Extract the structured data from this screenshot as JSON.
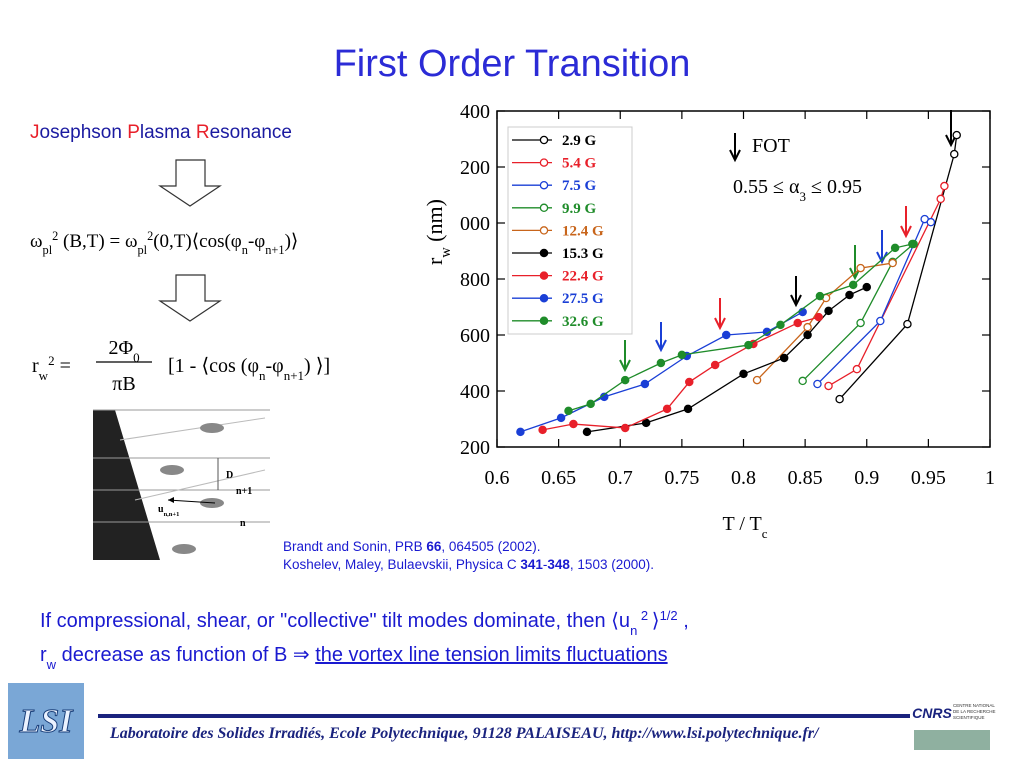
{
  "title": "First Order Transition",
  "heading": [
    {
      "r": "J"
    },
    {
      "t": "osephson "
    },
    {
      "r": "P"
    },
    {
      "t": "lasma "
    },
    {
      "r": "R"
    },
    {
      "t": "esonance"
    }
  ],
  "equation1": [
    {
      "t": "ω"
    },
    {
      "sub": "pl"
    },
    {
      "sup": "2"
    },
    {
      "t": " (B,T) = ω"
    },
    {
      "sub": "pl"
    },
    {
      "sup": "2"
    },
    {
      "t": "(0,T)⟨cos(φ"
    },
    {
      "sub": "n"
    },
    {
      "t": "-φ"
    },
    {
      "sub": "n+1"
    },
    {
      "t": ")⟩"
    }
  ],
  "equation2": {
    "left": [
      {
        "t": "r"
      },
      {
        "sub": "w"
      },
      {
        "sup": "2"
      },
      {
        "t": " ="
      }
    ],
    "numerator": [
      {
        "t": "2Φ"
      },
      {
        "sub": "0"
      }
    ],
    "denominator": [
      {
        "t": "πB"
      }
    ],
    "right": [
      {
        "t": "[1 - ⟨cos (φ"
      },
      {
        "sub": "n"
      },
      {
        "t": "-φ"
      },
      {
        "sub": "n+1"
      },
      {
        "t": ") ⟩]"
      }
    ]
  },
  "diagram": {
    "labels": [
      [
        {
          "t": "D"
        }
      ],
      [
        {
          "t": "n+1"
        }
      ],
      [
        {
          "t": "u"
        },
        {
          "sub": "n,n+1"
        }
      ],
      [
        {
          "t": "n"
        }
      ]
    ]
  },
  "chart_data": {
    "type": "scatter",
    "xlabel": [
      {
        "t": "T / T"
      },
      {
        "sub": "c"
      }
    ],
    "ylabel": [
      {
        "t": "r"
      },
      {
        "sub": "w"
      },
      {
        "t": " (nm)"
      }
    ],
    "annotations": [
      [
        {
          "t": "FOT"
        }
      ],
      [
        {
          "t": "0.55 ≤ α"
        },
        {
          "sub": "3"
        },
        {
          "t": " ≤ 0.95"
        }
      ]
    ],
    "xlim": [
      0.6,
      1
    ],
    "xticks": [
      0.6,
      0.65,
      0.7,
      0.75,
      0.8,
      0.85,
      0.9,
      0.95,
      1
    ],
    "ylim": [
      200,
      1400
    ],
    "yticks": [
      200,
      400,
      600,
      800,
      {
        "value": 1000,
        "label": "000"
      },
      {
        "value": 1200,
        "label": "200"
      },
      {
        "value": 1400,
        "label": "400"
      }
    ],
    "legend": "upper left",
    "series": [
      {
        "name": "2.9 G",
        "color": "#000000",
        "filled": false,
        "x": [
          0.878,
          0.933,
          0.971,
          0.973
        ],
        "values": [
          371,
          639,
          1246,
          1314
        ]
      },
      {
        "name": "5.4 G",
        "color": "#e8202a",
        "filled": false,
        "x": [
          0.869,
          0.892,
          0.96,
          0.963
        ],
        "values": [
          418,
          478,
          1086,
          1132
        ]
      },
      {
        "name": "7.5 G",
        "color": "#1a3fd6",
        "filled": false,
        "x": [
          0.86,
          0.911,
          0.947,
          0.952
        ],
        "values": [
          425,
          650,
          1014,
          1003
        ]
      },
      {
        "name": "9.9 G",
        "color": "#1f8c2a",
        "filled": false,
        "x": [
          0.848,
          0.895,
          0.921,
          0.938
        ],
        "values": [
          436,
          643,
          861,
          925
        ]
      },
      {
        "name": "12.4 G",
        "color": "#c8651b",
        "filled": false,
        "x": [
          0.811,
          0.852,
          0.867,
          0.895,
          0.921
        ],
        "values": [
          439,
          628,
          732,
          839,
          857
        ]
      },
      {
        "name": "15.3 G",
        "color": "#000000",
        "filled": true,
        "x": [
          0.673,
          0.721,
          0.755,
          0.8,
          0.833,
          0.852,
          0.869,
          0.886,
          0.9
        ],
        "values": [
          254,
          286,
          336,
          461,
          518,
          600,
          686,
          743,
          771
        ]
      },
      {
        "name": "22.4 G",
        "color": "#e8202a",
        "filled": true,
        "x": [
          0.637,
          0.662,
          0.704,
          0.738,
          0.756,
          0.777,
          0.808,
          0.844,
          0.861
        ],
        "values": [
          261,
          282,
          268,
          336,
          432,
          493,
          568,
          643,
          664
        ]
      },
      {
        "name": "27.5 G",
        "color": "#1a3fd6",
        "filled": true,
        "x": [
          0.619,
          0.652,
          0.687,
          0.72,
          0.754,
          0.786,
          0.819,
          0.848
        ],
        "values": [
          254,
          304,
          379,
          425,
          525,
          600,
          611,
          682
        ]
      },
      {
        "name": "32.6 G",
        "color": "#1f8c2a",
        "filled": true,
        "x": [
          0.658,
          0.676,
          0.704,
          0.733,
          0.75,
          0.804,
          0.83,
          0.862,
          0.889,
          0.923,
          0.937
        ],
        "values": [
          329,
          354,
          439,
          500,
          529,
          564,
          636,
          739,
          779,
          911,
          925
        ]
      }
    ]
  },
  "references": [
    [
      {
        "t": "Brandt and Sonin, PRB "
      },
      {
        "b": "66"
      },
      {
        "t": ", 064505 (2002)."
      }
    ],
    [
      {
        "t": "Koshelev, Maley, Bulaevskii, Physica C "
      },
      {
        "b": "341"
      },
      {
        "t": "-"
      },
      {
        "b": "348"
      },
      {
        "t": ", 1503  (2000)."
      }
    ]
  ],
  "conclusion": [
    [
      {
        "t": "If compressional, shear, or \"collective\" tilt modes dominate, then ⟨u"
      },
      {
        "sub": "n"
      },
      {
        "sup": " 2 "
      },
      {
        "t": "⟩"
      },
      {
        "sup": "1/2"
      },
      {
        "t": " ,"
      }
    ],
    [
      {
        "t": "r"
      },
      {
        "sub": "w"
      },
      {
        "t": " decrease as function of B ⇒  "
      },
      {
        "u": "the vortex line tension limits fluctuations"
      }
    ]
  ],
  "footer": "Laboratoire des Solides Irradiés, Ecole Polytechnique, 91128 PALAISEAU, http://www.lsi.polytechnique.fr/",
  "logos": {
    "lsi": "LSI",
    "cnrs": "CNRS",
    "cnrs_caption": [
      "CENTRE NATIONAL",
      "DE LA RECHERCHE",
      "SCIENTIFIQUE"
    ]
  }
}
